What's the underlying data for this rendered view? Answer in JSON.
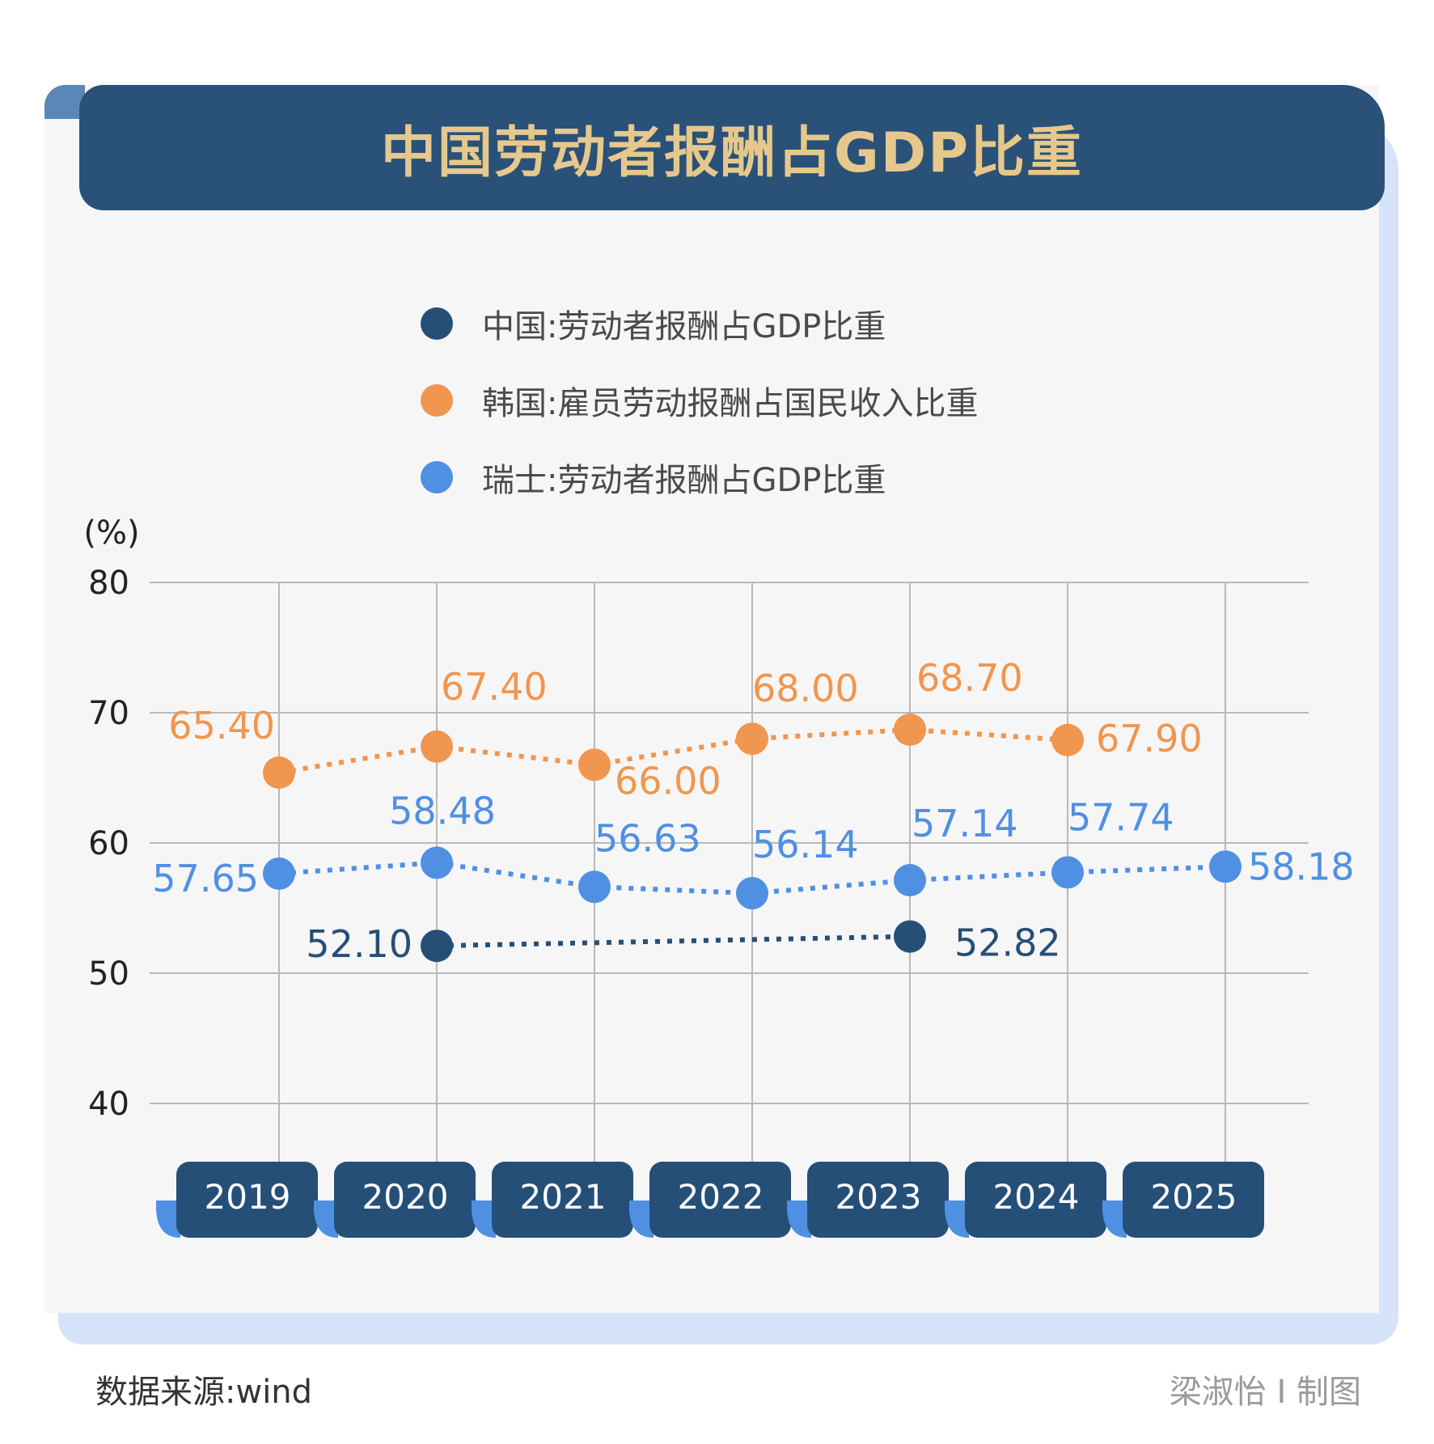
{
  "title": "中国劳动者报酬占GDP比重",
  "legend": [
    {
      "label": "中国:劳动者报酬占GDP比重",
      "color": "#264f77"
    },
    {
      "label": "韩国:雇员劳动报酬占国民收入比重",
      "color": "#f0964f"
    },
    {
      "label": "瑞士:劳动者报酬占GDP比重",
      "color": "#4f90e2"
    }
  ],
  "footer": {
    "source": "数据来源:wind",
    "credit": "梁淑怡 I 制图"
  },
  "colors": {
    "title_bar": "#2a5178",
    "title_text": "#e6c88c",
    "panel": "#f6f6f7",
    "shadow": "#d6e3fb",
    "year_tab": "#264f77",
    "year_tab_accent": "#4f90e2",
    "grid": "#b9b9b9"
  },
  "chart_data": {
    "type": "line",
    "title": "中国劳动者报酬占GDP比重",
    "ylabel": "(%)",
    "ylim": [
      40,
      80
    ],
    "yticks": [
      40,
      50,
      60,
      70,
      80
    ],
    "categories": [
      "2019",
      "2020",
      "2021",
      "2022",
      "2023",
      "2024",
      "2025"
    ],
    "grid": true,
    "line_style": "dotted",
    "series": [
      {
        "name": "中国:劳动者报酬占GDP比重",
        "color": "#264f77",
        "values": [
          null,
          52.1,
          null,
          null,
          52.82,
          null,
          null
        ],
        "labels": [
          null,
          "52.10",
          null,
          null,
          "52.82",
          null,
          null
        ]
      },
      {
        "name": "韩国:雇员劳动报酬占国民收入比重",
        "color": "#f0964f",
        "values": [
          65.4,
          67.4,
          66.0,
          68.0,
          68.7,
          67.9,
          null
        ],
        "labels": [
          "65.40",
          "67.40",
          "66.00",
          "68.00",
          "68.70",
          "67.90",
          null
        ]
      },
      {
        "name": "瑞士:劳动者报酬占GDP比重",
        "color": "#4f90e2",
        "values": [
          57.65,
          58.48,
          56.63,
          56.14,
          57.14,
          57.74,
          58.18
        ],
        "labels": [
          "57.65",
          "58.48",
          "56.63",
          "56.14",
          "57.14",
          "57.74",
          "58.18"
        ]
      }
    ]
  }
}
